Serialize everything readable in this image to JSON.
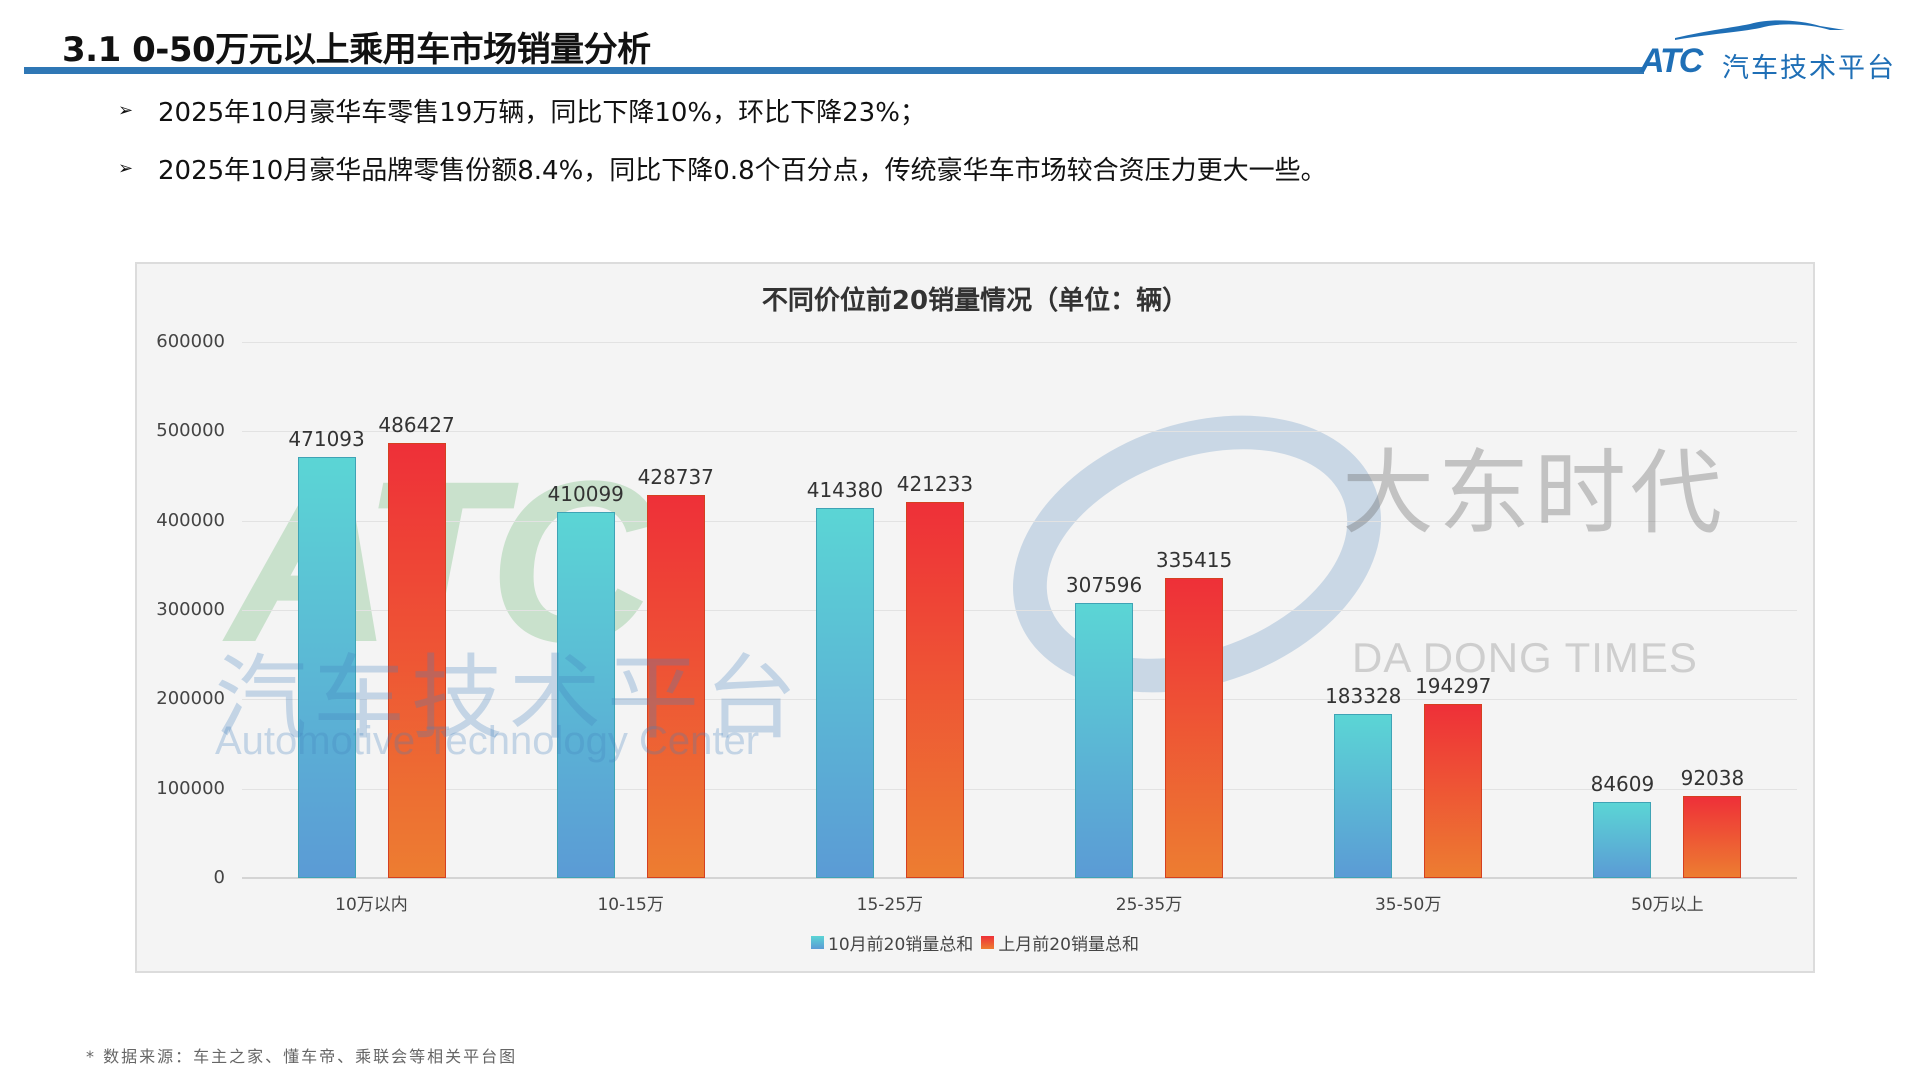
{
  "header": {
    "title": "3.1 0-50万元以上乘用车市场销量分析",
    "logo_mark": "ATC",
    "logo_text": "汽车技术平台"
  },
  "bullets": [
    "2025年10月豪华车零售19万辆，同比下降10%，环比下降23%；",
    "2025年10月豪华品牌零售份额8.4%，同比下降0.8个百分点，传统豪华车市场较合资压力更大一些。"
  ],
  "bullet_icon": "➢",
  "watermarks": {
    "atc_mark": "ATC",
    "atc_cn": "汽车技术平台",
    "atc_en": "Automotive Technology Center",
    "dd_cn": "大东时代",
    "dd_en": "DA DONG TIMES"
  },
  "chart_data": {
    "type": "bar",
    "title": "不同价位前20销量情况（单位：辆）",
    "xlabel": "",
    "ylabel": "",
    "ylim": [
      0,
      600000
    ],
    "yticks": [
      "600000",
      "500000",
      "400000",
      "300000",
      "200000",
      "100000",
      "0"
    ],
    "grid": true,
    "legend_position": "bottom",
    "categories": [
      "10万以内",
      "10-15万",
      "15-25万",
      "25-35万",
      "35-50万",
      "50万以上"
    ],
    "series": [
      {
        "name": "10月前20销量总和",
        "values": [
          471093,
          410099,
          414380,
          307596,
          183328,
          84609
        ],
        "color_top": "#5bd5d5",
        "color_bottom": "#5b9bd5"
      },
      {
        "name": "上月前20销量总和",
        "values": [
          486427,
          428737,
          421233,
          335415,
          194297,
          92038
        ],
        "color_top": "#ee3038",
        "color_bottom": "#ed7d31"
      }
    ]
  },
  "footnote": "* 数据来源：车主之家、懂车帝、乘联会等相关平台图",
  "colors": {
    "accent_rule": "#2f77b5",
    "logo_blue": "#1f6fb6",
    "chart_bg": "#f4f4f4"
  }
}
